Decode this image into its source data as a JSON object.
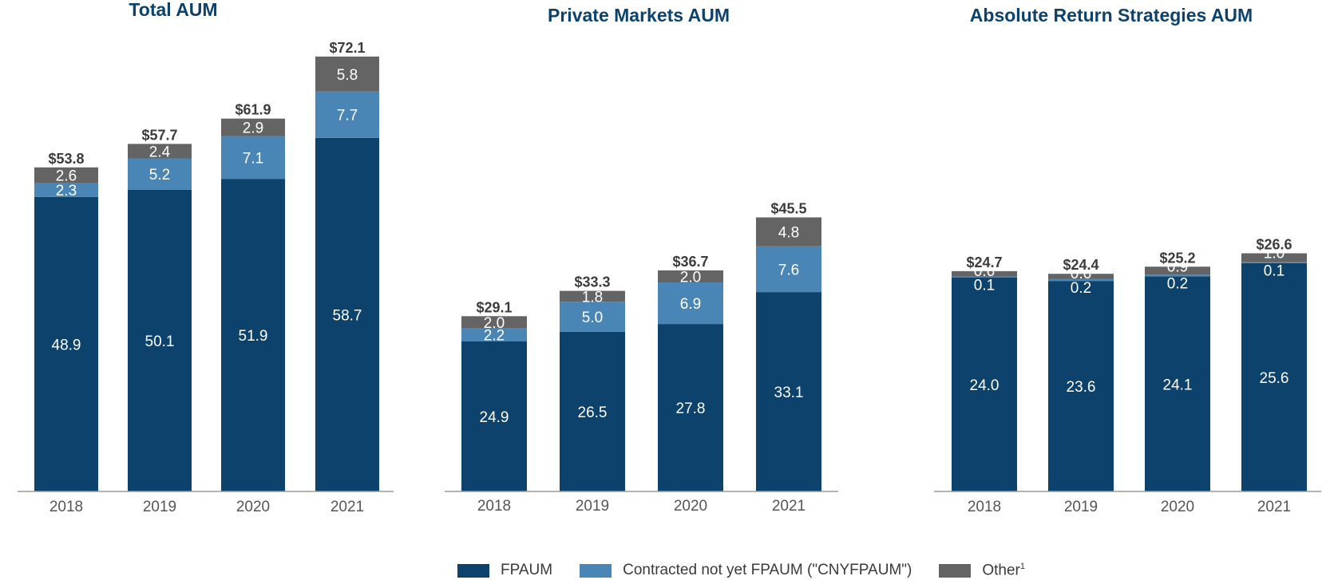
{
  "colors": {
    "fpaum": "#0c426b",
    "cnyfpaum": "#4a86b5",
    "other": "#646464",
    "title": "#0c426b",
    "axis": "#9a9a9a",
    "tick": "#555555",
    "total": "#3c3c3c"
  },
  "legend": [
    {
      "label": "FPAUM",
      "sup": "",
      "color_key": "fpaum"
    },
    {
      "label": "Contracted not yet FPAUM (\"CNYFPAUM\")",
      "sup": "",
      "color_key": "cnyfpaum"
    },
    {
      "label": "Other",
      "sup": "1",
      "color_key": "other"
    }
  ],
  "chart_data": [
    {
      "type": "bar",
      "stacked": true,
      "title": "Total AUM",
      "categories": [
        "2018",
        "2019",
        "2020",
        "2021"
      ],
      "series": [
        {
          "name": "FPAUM",
          "values": [
            48.9,
            50.1,
            51.9,
            58.7
          ]
        },
        {
          "name": "Contracted not yet FPAUM (\"CNYFPAUM\")",
          "values": [
            2.3,
            5.2,
            7.1,
            7.7
          ]
        },
        {
          "name": "Other",
          "values": [
            2.6,
            2.4,
            2.9,
            5.8
          ]
        }
      ],
      "totals": [
        "$53.8",
        "$57.7",
        "$61.9",
        "$72.1"
      ]
    },
    {
      "type": "bar",
      "stacked": true,
      "title": "Private Markets AUM",
      "categories": [
        "2018",
        "2019",
        "2020",
        "2021"
      ],
      "series": [
        {
          "name": "FPAUM",
          "values": [
            24.9,
            26.5,
            27.8,
            33.1
          ]
        },
        {
          "name": "Contracted not yet FPAUM (\"CNYFPAUM\")",
          "values": [
            2.2,
            5.0,
            6.9,
            7.6
          ]
        },
        {
          "name": "Other",
          "values": [
            2.0,
            1.8,
            2.0,
            4.8
          ]
        }
      ],
      "totals": [
        "$29.1",
        "$33.3",
        "$36.7",
        "$45.5"
      ]
    },
    {
      "type": "bar",
      "stacked": true,
      "title": "Absolute Return Strategies AUM",
      "categories": [
        "2018",
        "2019",
        "2020",
        "2021"
      ],
      "series": [
        {
          "name": "FPAUM",
          "values": [
            24.0,
            23.6,
            24.1,
            25.6
          ]
        },
        {
          "name": "Contracted not yet FPAUM (\"CNYFPAUM\")",
          "values": [
            0.1,
            0.2,
            0.2,
            0.1
          ]
        },
        {
          "name": "Other",
          "values": [
            0.6,
            0.6,
            0.9,
            1.0
          ]
        }
      ],
      "totals": [
        "$24.7",
        "$24.4",
        "$25.2",
        "$26.6"
      ]
    }
  ]
}
